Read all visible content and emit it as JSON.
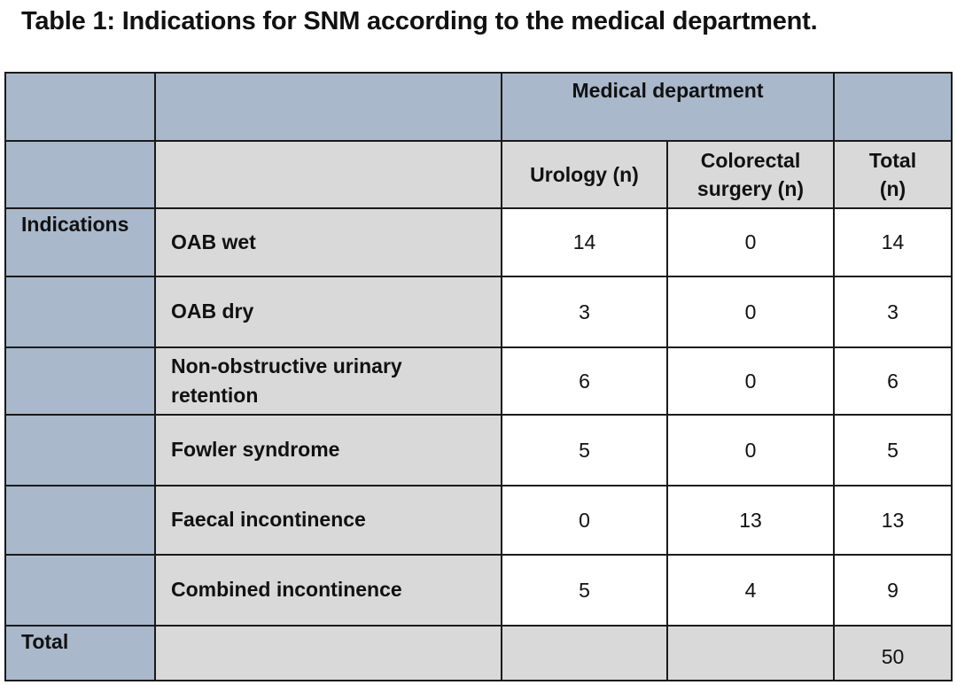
{
  "title": "Table 1: Indications for SNM according to the medical department.",
  "table": {
    "group_header": "Medical department",
    "columns": {
      "urology": "Urology (n)",
      "colorectal_line1": "Colorectal",
      "colorectal_line2": "surgery (n)",
      "total_line1": "Total",
      "total_line2": "(n)"
    },
    "indications_label": "Indications",
    "rows": [
      {
        "indication": "OAB wet",
        "urology": "14",
        "colorectal": "0",
        "total": "14"
      },
      {
        "indication": "OAB dry",
        "urology": "3",
        "colorectal": "0",
        "total": "3"
      },
      {
        "indication_line1": "Non-obstructive urinary",
        "indication_line2": "retention",
        "urology": "6",
        "colorectal": "0",
        "total": "6"
      },
      {
        "indication": "Fowler syndrome",
        "urology": "5",
        "colorectal": "0",
        "total": "5"
      },
      {
        "indication": "Faecal incontinence",
        "urology": "0",
        "colorectal": "13",
        "total": "13"
      },
      {
        "indication": "Combined incontinence",
        "urology": "5",
        "colorectal": "4",
        "total": "9"
      }
    ],
    "total_row": {
      "label": "Total",
      "total": "50"
    }
  },
  "colors": {
    "header_blue": "#a9b8cb",
    "cell_grey": "#d9d9d9",
    "cell_white": "#ffffff",
    "border": "#1a1a1a"
  }
}
